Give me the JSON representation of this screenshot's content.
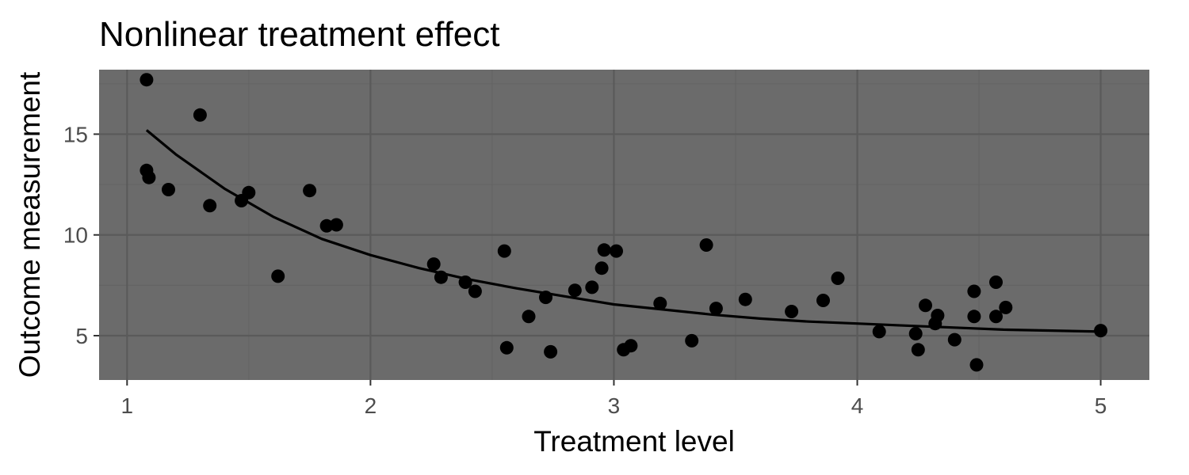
{
  "chart_data": {
    "type": "scatter",
    "title": "Nonlinear treatment effect",
    "xlabel": "Treatment level",
    "ylabel": "Outcome measurement",
    "xlim": [
      0.885,
      5.2
    ],
    "ylim": [
      2.8,
      18.2
    ],
    "x_ticks": [
      1,
      2,
      3,
      4,
      5
    ],
    "y_ticks": [
      5,
      10,
      15
    ],
    "grid": true,
    "legend": "none",
    "colors": {
      "panel_background": "#6b6b6b",
      "grid_major": "#5a5a5a",
      "grid_minor": "#646464",
      "points": "#000000",
      "fit_line": "#000000",
      "tick_text": "#4d4d4d"
    },
    "series": [
      {
        "type": "scatter",
        "points": [
          [
            1.08,
            17.7
          ],
          [
            1.08,
            13.2
          ],
          [
            1.09,
            12.85
          ],
          [
            1.17,
            12.25
          ],
          [
            1.3,
            15.95
          ],
          [
            1.34,
            11.45
          ],
          [
            1.47,
            11.7
          ],
          [
            1.5,
            12.1
          ],
          [
            1.62,
            7.95
          ],
          [
            1.75,
            12.2
          ],
          [
            1.82,
            10.45
          ],
          [
            1.86,
            10.5
          ],
          [
            2.26,
            8.55
          ],
          [
            2.29,
            7.9
          ],
          [
            2.39,
            7.65
          ],
          [
            2.43,
            7.2
          ],
          [
            2.55,
            9.2
          ],
          [
            2.56,
            4.4
          ],
          [
            2.65,
            5.95
          ],
          [
            2.72,
            6.9
          ],
          [
            2.74,
            4.2
          ],
          [
            2.84,
            7.25
          ],
          [
            2.91,
            7.4
          ],
          [
            2.95,
            8.35
          ],
          [
            2.96,
            9.25
          ],
          [
            3.01,
            9.2
          ],
          [
            3.04,
            4.3
          ],
          [
            3.07,
            4.5
          ],
          [
            3.19,
            6.6
          ],
          [
            3.32,
            4.75
          ],
          [
            3.38,
            9.5
          ],
          [
            3.42,
            6.35
          ],
          [
            3.54,
            6.8
          ],
          [
            3.73,
            6.2
          ],
          [
            3.86,
            6.75
          ],
          [
            3.92,
            7.85
          ],
          [
            4.09,
            5.2
          ],
          [
            4.24,
            5.1
          ],
          [
            4.25,
            4.3
          ],
          [
            4.28,
            6.5
          ],
          [
            4.32,
            5.6
          ],
          [
            4.33,
            6.0
          ],
          [
            4.4,
            4.8
          ],
          [
            4.48,
            7.2
          ],
          [
            4.48,
            5.95
          ],
          [
            4.49,
            3.55
          ],
          [
            4.57,
            5.95
          ],
          [
            4.57,
            7.65
          ],
          [
            4.61,
            6.4
          ],
          [
            5.0,
            5.25
          ]
        ]
      },
      {
        "type": "line",
        "points": [
          [
            1.08,
            15.2
          ],
          [
            1.2,
            14.0
          ],
          [
            1.4,
            12.3
          ],
          [
            1.6,
            10.9
          ],
          [
            1.8,
            9.8
          ],
          [
            2.0,
            9.0
          ],
          [
            2.2,
            8.35
          ],
          [
            2.4,
            7.8
          ],
          [
            2.6,
            7.35
          ],
          [
            2.8,
            6.95
          ],
          [
            3.0,
            6.55
          ],
          [
            3.2,
            6.3
          ],
          [
            3.4,
            6.05
          ],
          [
            3.6,
            5.85
          ],
          [
            3.8,
            5.7
          ],
          [
            4.0,
            5.6
          ],
          [
            4.2,
            5.5
          ],
          [
            4.4,
            5.4
          ],
          [
            4.6,
            5.3
          ],
          [
            4.8,
            5.25
          ],
          [
            5.0,
            5.2
          ]
        ]
      }
    ]
  }
}
